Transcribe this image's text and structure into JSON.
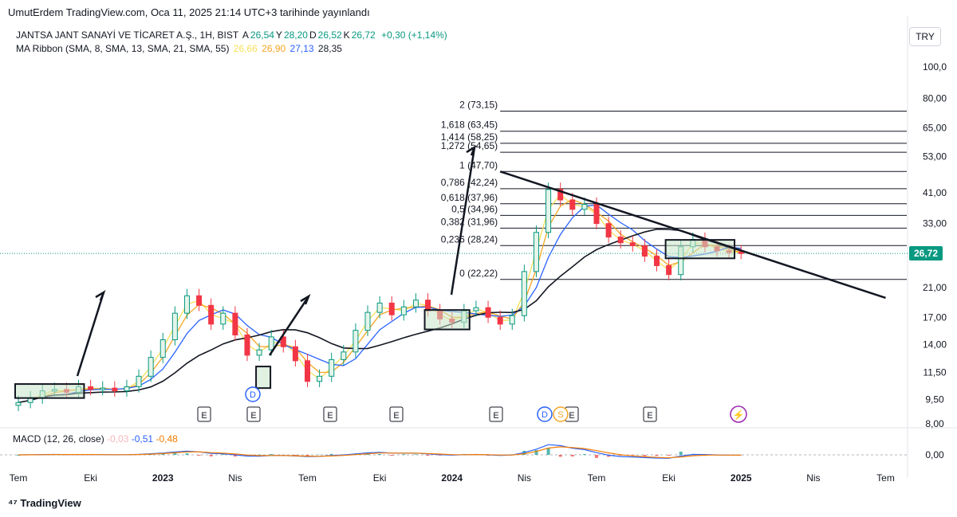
{
  "header": {
    "publish_line": "UmutErdem TradingView.com, Oca 11, 2025 21:14 UTC+3 tarihinde yayınlandı",
    "currency_button": "TRY",
    "footer_brand": "TradingView"
  },
  "legend": {
    "symbol": "JANTSA JANT SANAYİ VE TİCARET A.Ş., 1H, BIST",
    "ohlc": [
      {
        "key": "A",
        "value": "26,54"
      },
      {
        "key": "Y",
        "value": "28,20"
      },
      {
        "key": "D",
        "value": "26,52"
      },
      {
        "key": "K",
        "value": "26,72"
      }
    ],
    "change": "+0,30 (+1,14%)",
    "ma_label": "MA Ribbon (SMA, 8, SMA, 13, SMA, 21, SMA, 55)",
    "ma_values": [
      {
        "value": "26,66",
        "color": "#f7e05a"
      },
      {
        "value": "26,90",
        "color": "#f5a623"
      },
      {
        "value": "27,13",
        "color": "#2962ff"
      },
      {
        "value": "28,35",
        "color": "#131722"
      }
    ],
    "macd_label": "MACD (12, 26, close)",
    "macd_values": [
      {
        "value": "-0,03",
        "color": "#f7b6bc"
      },
      {
        "value": "-0,51",
        "color": "#2962ff"
      },
      {
        "value": "-0,48",
        "color": "#f57c00"
      }
    ]
  },
  "colors": {
    "up": "#089981",
    "down": "#f23645",
    "up_body": "#e5f5ea",
    "ma8": "#f7e05a",
    "ma13": "#f5a623",
    "ma21": "#2962ff",
    "ma55": "#131722",
    "box_fill": "#c8e6c9",
    "event_circle": "#2962ff",
    "split_circle": "#9c27b0",
    "dividend_circle": "#f5a623"
  },
  "chart_data": {
    "type": "candlestick",
    "scale": "log",
    "last_price": "26,72",
    "y_ticks": [
      "100,0",
      "80,00",
      "65,00",
      "53,00",
      "41,00",
      "33,00",
      "26,72",
      "21,00",
      "17,00",
      "14,00",
      "11,50",
      "9,50",
      "8,00"
    ],
    "y_tick_values": [
      100,
      80,
      65,
      53,
      41,
      33,
      26.72,
      21,
      17,
      14,
      11.5,
      9.5,
      8
    ],
    "x_ticks": [
      "Tem",
      "Eki",
      "2023",
      "Nis",
      "Tem",
      "Eki",
      "2024",
      "Nis",
      "Tem",
      "Eki",
      "2025",
      "Nis",
      "Tem"
    ],
    "x_tick_dates": [
      "2022-07",
      "2022-10",
      "2023-01",
      "2023-04",
      "2023-07",
      "2023-10",
      "2024-01",
      "2024-04",
      "2024-07",
      "2024-10",
      "2025-01",
      "2025-04",
      "2025-07"
    ],
    "x_tick_bold": [
      false,
      false,
      true,
      false,
      false,
      false,
      true,
      false,
      false,
      false,
      true,
      false,
      false
    ],
    "fib_levels": [
      {
        "label": "2 (73,15)",
        "price": 73.15
      },
      {
        "label": "1,618 (63,45)",
        "price": 63.45
      },
      {
        "label": "1,414 (58,25)",
        "price": 58.25
      },
      {
        "label": "1,272 (54,65)",
        "price": 54.65
      },
      {
        "label": "1 (47,70)",
        "price": 47.7
      },
      {
        "label": "0,786 (42,24)",
        "price": 42.24
      },
      {
        "label": "0,618 (37,96)",
        "price": 37.96
      },
      {
        "label": "0,5 (34,96)",
        "price": 34.96
      },
      {
        "label": "0,382 (31,96)",
        "price": 31.96
      },
      {
        "label": "0,236 (28,24)",
        "price": 28.24
      },
      {
        "label": "0 (22,22)",
        "price": 22.22
      }
    ],
    "trendline": {
      "from": {
        "date": "2024-03",
        "price": 47.7
      },
      "to": {
        "date": "2025-07",
        "price": 19.5
      }
    },
    "consolidation_boxes": [
      {
        "from": "2022-07",
        "to": "2022-09",
        "low": 9.6,
        "high": 10.6
      },
      {
        "from": "2023-05",
        "to": "2023-05",
        "low": 10.3,
        "high": 12.0
      },
      {
        "from": "2023-12",
        "to": "2024-01",
        "low": 15.6,
        "high": 17.9
      },
      {
        "from": "2024-10",
        "to": "2024-12",
        "low": 25.8,
        "high": 29.4
      }
    ],
    "event_markers": {
      "earnings": [
        "E",
        "E",
        "E",
        "E",
        "E",
        "E",
        "E"
      ],
      "dividends": [
        "D",
        "D"
      ],
      "splits": [
        "S"
      ]
    },
    "macd": {
      "zero_label": "0,00",
      "signal_peak_period": "2024-04"
    },
    "series": [
      {
        "name": "price",
        "close": [
          9.3,
          9.6,
          10.1,
          10.2,
          10.0,
          10.4,
          10.2,
          10.3,
          10.1,
          10.4,
          11.2,
          12.8,
          14.5,
          17.5,
          19.8,
          18.5,
          16.2,
          17.5,
          15.0,
          13.0,
          13.5,
          14.8,
          13.8,
          12.5,
          10.8,
          11.2,
          12.6,
          13.3,
          15.5,
          17.6,
          18.8,
          17.3,
          18.3,
          19.2,
          17.8,
          16.8,
          16.4,
          17.8,
          18.2,
          17.0,
          16.2,
          17.2,
          23.5,
          31.0,
          42.0,
          39.0,
          36.5,
          37.8,
          33.0,
          30.0,
          28.8,
          28.2,
          26.2,
          24.5,
          23.0,
          28.0,
          29.5,
          28.0,
          27.2,
          27.0,
          26.72
        ]
      }
    ]
  }
}
